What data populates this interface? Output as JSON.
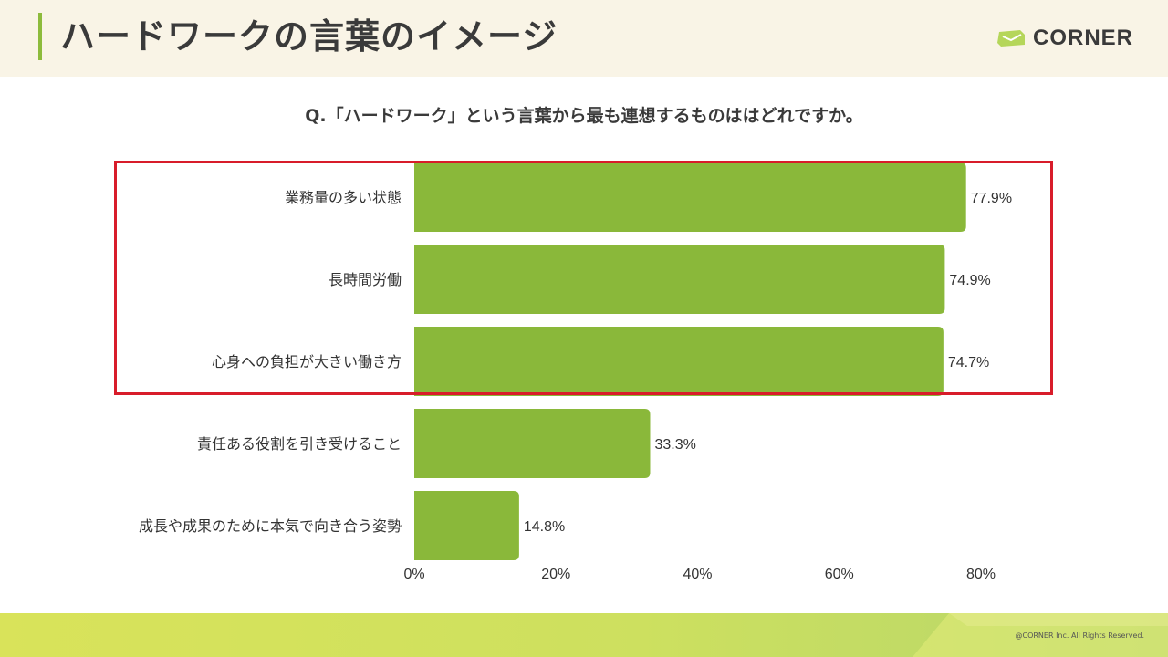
{
  "page": {
    "title": "ハードワークの言葉のイメージ",
    "logo_text": "CORNER",
    "copyright": "@CORNER Inc. All Rights Reserved."
  },
  "colors": {
    "bar": "#8ab83a",
    "highlight": "#d81c2a",
    "header_bg": "#f9f4e6"
  },
  "chart_data": {
    "type": "bar",
    "orientation": "horizontal",
    "title": "Q.「ハードワーク」という言葉から最も連想するものははどれですか。",
    "categories": [
      "業務量の多い状態",
      "長時間労働",
      "心身への負担が大きい働き方",
      "責任ある役割を引き受けること",
      "成長や成果のために本気で向き合う姿勢"
    ],
    "values": [
      77.9,
      74.9,
      74.7,
      33.3,
      14.8
    ],
    "value_labels": [
      "77.9%",
      "74.9%",
      "74.7%",
      "33.3%",
      "14.8%"
    ],
    "xlim": [
      0,
      80
    ],
    "x_ticks": [
      "0%",
      "20%",
      "40%",
      "60%",
      "80%"
    ],
    "grid": false,
    "highlighted_categories": [
      0,
      1,
      2
    ]
  }
}
